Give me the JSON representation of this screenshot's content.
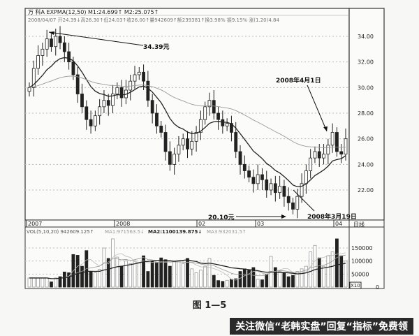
{
  "header": {
    "line1": "万 科A EXPMA(12,50) M1:24.699↑ M2:25.075↑",
    "line2": "2008/04/07 开24.39↓高26.30↑低24.03↑收26.00↑量942609↑额239381↑换3.98% 振9.15% 涨(1.20)4.84"
  },
  "volume_header": {
    "label": "VOL(5,10,20) 942609.125↑",
    "ma1": "MA1:971563.5↓",
    "ma2": "MA2:1100139.875↓",
    "ma3": "MA3:932031.5↑"
  },
  "period_label": "日线",
  "volume_unit": "X10",
  "caption": "图 1—5",
  "watermark": "关注微信“老韩实盘”回复“指标”免费领",
  "chart_data": [
    {
      "type": "candlestick",
      "y_ticks": [
        "34.00",
        "32.00",
        "30.00",
        "28.00",
        "26.00",
        "24.00",
        "22.00"
      ],
      "ylim": [
        20,
        34.8
      ],
      "x_ticks": [
        "2007",
        "2008",
        "02",
        "03",
        "04"
      ],
      "annotations": [
        {
          "text": "34.39元"
        },
        {
          "text": "2008年4月1日"
        },
        {
          "text": "20.10元"
        },
        {
          "text": "2008年3月19日"
        }
      ],
      "close": [
        30.0,
        31.5,
        32.5,
        33.0,
        33.8,
        33.2,
        34.0,
        33.5,
        32.8,
        32.0,
        31.0,
        29.5,
        28.5,
        27.5,
        27.0,
        27.8,
        28.5,
        29.0,
        28.6,
        29.5,
        30.0,
        29.2,
        29.8,
        30.5,
        31.0,
        31.2,
        30.5,
        29.0,
        28.0,
        27.0,
        26.5,
        25.0,
        24.0,
        24.8,
        25.5,
        26.0,
        25.2,
        25.8,
        26.5,
        27.5,
        28.5,
        29.0,
        28.0,
        27.5,
        27.0,
        27.2,
        26.5,
        25.0,
        24.0,
        23.5,
        23.0,
        22.5,
        23.2,
        22.8,
        22.0,
        22.5,
        21.8,
        22.3,
        21.5,
        21.0,
        20.5,
        21.5,
        22.5,
        23.5,
        24.5,
        25.0,
        24.5,
        24.8,
        25.5,
        26.5,
        25.0,
        24.8,
        26.0
      ],
      "lines": [
        "EXPMA 12",
        "EXPMA 50"
      ]
    },
    {
      "type": "bar",
      "y_ticks": [
        "150000",
        "100000",
        "50000",
        "0"
      ],
      "ylim": [
        0,
        190000
      ],
      "volume": [
        35000,
        35000,
        35000,
        35000,
        35000,
        20000,
        35000,
        40000,
        58000,
        55000,
        125000,
        122000,
        80000,
        140000,
        60000,
        55000,
        68000,
        150000,
        110000,
        185000,
        115000,
        80000,
        100000,
        90000,
        100000,
        95000,
        120000,
        60000,
        100000,
        95000,
        112000,
        105000,
        80000,
        100000,
        98000,
        90000,
        110000,
        70000,
        55000,
        65000,
        80000,
        110000,
        45000,
        25000,
        22000,
        26000,
        30000,
        32000,
        60000,
        70000,
        65000,
        75000,
        30000,
        28000,
        50000,
        118000,
        75000,
        60000,
        55000,
        40000,
        45000,
        60000,
        70000,
        80000,
        135000,
        160000,
        112000,
        80000,
        120000,
        135000,
        185000,
        120000,
        100000
      ]
    }
  ]
}
